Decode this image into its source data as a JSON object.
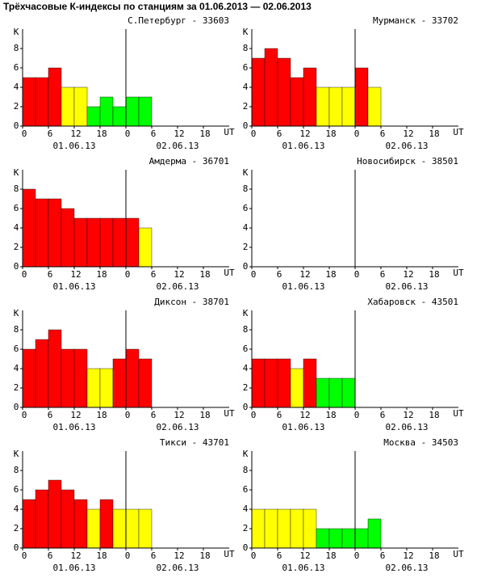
{
  "title": "Трёхчасовые К-индексы по станциям за 01.06.2013 — 02.06.2013",
  "chart_data": [
    {
      "type": "bar",
      "title": "С.Петербург - 33603",
      "x": [
        0,
        3,
        6,
        9,
        12,
        15,
        18,
        21,
        24,
        27,
        30,
        33,
        36,
        39,
        42,
        45
      ],
      "values": [
        5,
        5,
        6,
        4,
        4,
        2,
        3,
        2,
        3,
        3,
        null,
        null,
        null,
        null,
        null,
        null
      ],
      "colors": [
        "#ff0000",
        "#ff0000",
        "#ff0000",
        "#ffff00",
        "#ffff00",
        "#00ff00",
        "#00ff00",
        "#00ff00",
        "#00ff00",
        "#00ff00",
        null,
        null,
        null,
        null,
        null,
        null
      ],
      "xlim": [
        0,
        48
      ],
      "xticks": [
        0,
        6,
        12,
        18,
        {
          "value": 24,
          "label": "0"
        },
        {
          "value": 30,
          "label": "6"
        },
        {
          "value": 36,
          "label": "12"
        },
        {
          "value": 42,
          "label": "18"
        }
      ],
      "x_label": "UT",
      "dates": [
        {
          "value": 12,
          "label": "01.06.13"
        },
        {
          "value": 36,
          "label": "02.06.13"
        }
      ],
      "ylim": [
        0,
        10
      ],
      "yticks": [
        0,
        2,
        4,
        6,
        8
      ],
      "y_label": "К"
    },
    {
      "type": "bar",
      "title": "Мурманск - 33702",
      "x": [
        0,
        3,
        6,
        9,
        12,
        15,
        18,
        21,
        24,
        27,
        30,
        33,
        36,
        39,
        42,
        45
      ],
      "values": [
        7,
        8,
        7,
        5,
        6,
        4,
        4,
        4,
        6,
        4,
        null,
        null,
        null,
        null,
        null,
        null
      ],
      "colors": [
        "#ff0000",
        "#ff0000",
        "#ff0000",
        "#ff0000",
        "#ff0000",
        "#ffff00",
        "#ffff00",
        "#ffff00",
        "#ff0000",
        "#ffff00",
        null,
        null,
        null,
        null,
        null,
        null
      ],
      "xlim": [
        0,
        48
      ],
      "xticks": [
        0,
        6,
        12,
        18,
        {
          "value": 24,
          "label": "0"
        },
        {
          "value": 30,
          "label": "6"
        },
        {
          "value": 36,
          "label": "12"
        },
        {
          "value": 42,
          "label": "18"
        }
      ],
      "x_label": "UT",
      "dates": [
        {
          "value": 12,
          "label": "01.06.13"
        },
        {
          "value": 36,
          "label": "02.06.13"
        }
      ],
      "ylim": [
        0,
        10
      ],
      "yticks": [
        0,
        2,
        4,
        6,
        8
      ],
      "y_label": "К"
    },
    {
      "type": "bar",
      "title": "Амдерма - 36701",
      "x": [
        0,
        3,
        6,
        9,
        12,
        15,
        18,
        21,
        24,
        27,
        30,
        33,
        36,
        39,
        42,
        45
      ],
      "values": [
        8,
        7,
        7,
        6,
        5,
        5,
        5,
        5,
        5,
        4,
        null,
        null,
        null,
        null,
        null,
        null
      ],
      "colors": [
        "#ff0000",
        "#ff0000",
        "#ff0000",
        "#ff0000",
        "#ff0000",
        "#ff0000",
        "#ff0000",
        "#ff0000",
        "#ff0000",
        "#ffff00",
        null,
        null,
        null,
        null,
        null,
        null
      ],
      "xlim": [
        0,
        48
      ],
      "xticks": [
        0,
        6,
        12,
        18,
        {
          "value": 24,
          "label": "0"
        },
        {
          "value": 30,
          "label": "6"
        },
        {
          "value": 36,
          "label": "12"
        },
        {
          "value": 42,
          "label": "18"
        }
      ],
      "x_label": "UT",
      "dates": [
        {
          "value": 12,
          "label": "01.06.13"
        },
        {
          "value": 36,
          "label": "02.06.13"
        }
      ],
      "ylim": [
        0,
        10
      ],
      "yticks": [
        0,
        2,
        4,
        6,
        8
      ],
      "y_label": "К"
    },
    {
      "type": "bar",
      "title": "Новосибирск - 38501",
      "x": [
        0,
        3,
        6,
        9,
        12,
        15,
        18,
        21,
        24,
        27,
        30,
        33,
        36,
        39,
        42,
        45
      ],
      "values": [
        null,
        null,
        null,
        null,
        null,
        null,
        null,
        null,
        null,
        null,
        null,
        null,
        null,
        null,
        null,
        null
      ],
      "colors": [
        null,
        null,
        null,
        null,
        null,
        null,
        null,
        null,
        null,
        null,
        null,
        null,
        null,
        null,
        null,
        null
      ],
      "xlim": [
        0,
        48
      ],
      "xticks": [
        0,
        6,
        12,
        18,
        {
          "value": 24,
          "label": "0"
        },
        {
          "value": 30,
          "label": "6"
        },
        {
          "value": 36,
          "label": "12"
        },
        {
          "value": 42,
          "label": "18"
        }
      ],
      "x_label": "UT",
      "dates": [
        {
          "value": 12,
          "label": "01.06.13"
        },
        {
          "value": 36,
          "label": "02.06.13"
        }
      ],
      "ylim": [
        0,
        10
      ],
      "yticks": [
        0,
        2,
        4,
        6,
        8
      ],
      "y_label": "К"
    },
    {
      "type": "bar",
      "title": "Диксон - 38701",
      "x": [
        0,
        3,
        6,
        9,
        12,
        15,
        18,
        21,
        24,
        27,
        30,
        33,
        36,
        39,
        42,
        45
      ],
      "values": [
        6,
        7,
        8,
        6,
        6,
        4,
        4,
        5,
        6,
        5,
        null,
        null,
        null,
        null,
        null,
        null
      ],
      "colors": [
        "#ff0000",
        "#ff0000",
        "#ff0000",
        "#ff0000",
        "#ff0000",
        "#ffff00",
        "#ffff00",
        "#ff0000",
        "#ff0000",
        "#ff0000",
        null,
        null,
        null,
        null,
        null,
        null
      ],
      "xlim": [
        0,
        48
      ],
      "xticks": [
        0,
        6,
        12,
        18,
        {
          "value": 24,
          "label": "0"
        },
        {
          "value": 30,
          "label": "6"
        },
        {
          "value": 36,
          "label": "12"
        },
        {
          "value": 42,
          "label": "18"
        }
      ],
      "x_label": "UT",
      "dates": [
        {
          "value": 12,
          "label": "01.06.13"
        },
        {
          "value": 36,
          "label": "02.06.13"
        }
      ],
      "ylim": [
        0,
        10
      ],
      "yticks": [
        0,
        2,
        4,
        6,
        8
      ],
      "y_label": "К"
    },
    {
      "type": "bar",
      "title": "Хабаровск - 43501",
      "x": [
        0,
        3,
        6,
        9,
        12,
        15,
        18,
        21,
        24,
        27,
        30,
        33,
        36,
        39,
        42,
        45
      ],
      "values": [
        5,
        5,
        5,
        4,
        5,
        3,
        3,
        3,
        null,
        null,
        null,
        null,
        null,
        null,
        null,
        null
      ],
      "colors": [
        "#ff0000",
        "#ff0000",
        "#ff0000",
        "#ffff00",
        "#ff0000",
        "#00ff00",
        "#00ff00",
        "#00ff00",
        null,
        null,
        null,
        null,
        null,
        null,
        null,
        null
      ],
      "xlim": [
        0,
        48
      ],
      "xticks": [
        0,
        6,
        12,
        18,
        {
          "value": 24,
          "label": "0"
        },
        {
          "value": 30,
          "label": "6"
        },
        {
          "value": 36,
          "label": "12"
        },
        {
          "value": 42,
          "label": "18"
        }
      ],
      "x_label": "UT",
      "dates": [
        {
          "value": 12,
          "label": "01.06.13"
        },
        {
          "value": 36,
          "label": "02.06.13"
        }
      ],
      "ylim": [
        0,
        10
      ],
      "yticks": [
        0,
        2,
        4,
        6,
        8
      ],
      "y_label": "К"
    },
    {
      "type": "bar",
      "title": "Тикси - 43701",
      "x": [
        0,
        3,
        6,
        9,
        12,
        15,
        18,
        21,
        24,
        27,
        30,
        33,
        36,
        39,
        42,
        45
      ],
      "values": [
        5,
        6,
        7,
        6,
        5,
        4,
        5,
        4,
        4,
        4,
        null,
        null,
        null,
        null,
        null,
        null
      ],
      "colors": [
        "#ff0000",
        "#ff0000",
        "#ff0000",
        "#ff0000",
        "#ff0000",
        "#ffff00",
        "#ff0000",
        "#ffff00",
        "#ffff00",
        "#ffff00",
        null,
        null,
        null,
        null,
        null,
        null
      ],
      "xlim": [
        0,
        48
      ],
      "xticks": [
        0,
        6,
        12,
        18,
        {
          "value": 24,
          "label": "0"
        },
        {
          "value": 30,
          "label": "6"
        },
        {
          "value": 36,
          "label": "12"
        },
        {
          "value": 42,
          "label": "18"
        }
      ],
      "x_label": "UT",
      "dates": [
        {
          "value": 12,
          "label": "01.06.13"
        },
        {
          "value": 36,
          "label": "02.06.13"
        }
      ],
      "ylim": [
        0,
        10
      ],
      "yticks": [
        0,
        2,
        4,
        6,
        8
      ],
      "y_label": "К"
    },
    {
      "type": "bar",
      "title": "Москва - 34503",
      "x": [
        0,
        3,
        6,
        9,
        12,
        15,
        18,
        21,
        24,
        27,
        30,
        33,
        36,
        39,
        42,
        45
      ],
      "values": [
        4,
        4,
        4,
        4,
        4,
        2,
        2,
        2,
        2,
        3,
        null,
        null,
        null,
        null,
        null,
        null
      ],
      "colors": [
        "#ffff00",
        "#ffff00",
        "#ffff00",
        "#ffff00",
        "#ffff00",
        "#00ff00",
        "#00ff00",
        "#00ff00",
        "#00ff00",
        "#00ff00",
        null,
        null,
        null,
        null,
        null,
        null
      ],
      "xlim": [
        0,
        48
      ],
      "xticks": [
        0,
        6,
        12,
        18,
        {
          "value": 24,
          "label": "0"
        },
        {
          "value": 30,
          "label": "6"
        },
        {
          "value": 36,
          "label": "12"
        },
        {
          "value": 42,
          "label": "18"
        }
      ],
      "x_label": "UT",
      "dates": [
        {
          "value": 12,
          "label": "01.06.13"
        },
        {
          "value": 36,
          "label": "02.06.13"
        }
      ],
      "ylim": [
        0,
        10
      ],
      "yticks": [
        0,
        2,
        4,
        6,
        8
      ],
      "y_label": "К"
    }
  ]
}
